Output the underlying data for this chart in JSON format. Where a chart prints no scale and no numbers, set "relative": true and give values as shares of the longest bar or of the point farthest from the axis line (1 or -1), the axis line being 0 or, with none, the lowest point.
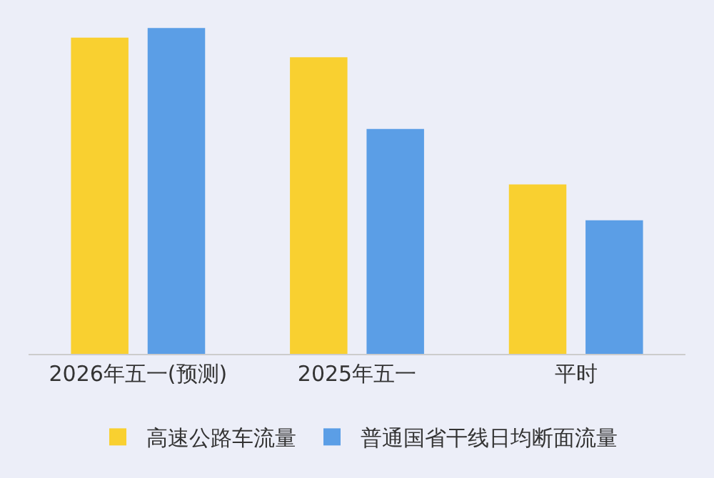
{
  "chart_data": {
    "type": "bar",
    "relative": true,
    "categories": [
      "2026年五一(预测)",
      "2025年五一",
      "平时"
    ],
    "series": [
      {
        "name": "高速公路车流量",
        "color": "#f9d030",
        "values": [
          0.97,
          0.91,
          0.52
        ]
      },
      {
        "name": "普通国省干线日均断面流量",
        "color": "#5b9ee6",
        "values": [
          1,
          0.69,
          0.41
        ]
      }
    ],
    "legend": "bottom"
  }
}
